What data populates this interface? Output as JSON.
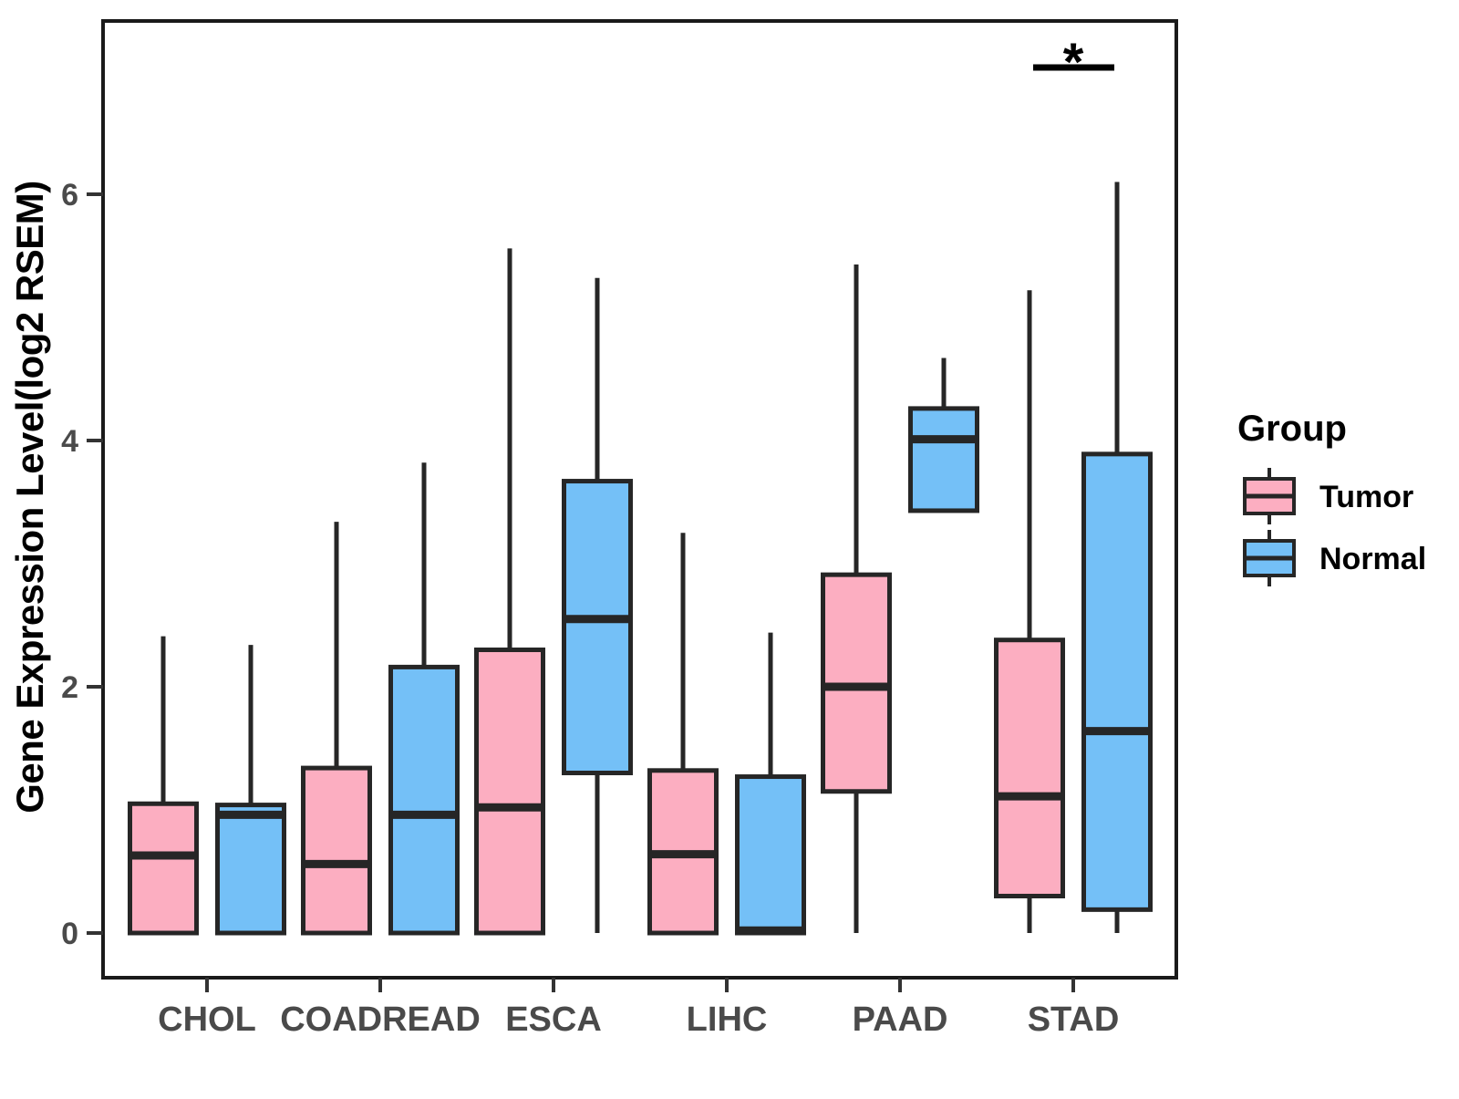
{
  "y_axis": {
    "title": "Gene Expression Level(log2 RSEM)",
    "tick_labels": [
      "0",
      "2",
      "4",
      "6"
    ]
  },
  "x_axis": {
    "categories": [
      "CHOL",
      "COADREAD",
      "ESCA",
      "LIHC",
      "PAAD",
      "STAD"
    ]
  },
  "legend": {
    "title": "Group",
    "items": [
      {
        "label": "Tumor",
        "color": "#FCAEC1"
      },
      {
        "label": "Normal",
        "color": "#74C0F7"
      }
    ]
  },
  "annotation": {
    "significance_label": "*",
    "category": "STAD"
  },
  "chart_data": {
    "type": "boxplot",
    "title": "",
    "xlabel": "",
    "ylabel": "Gene Expression Level(log2 RSEM)",
    "ylim": [
      -0.36,
      7.41
    ],
    "yticks": [
      0,
      2,
      4,
      6
    ],
    "grid": false,
    "legend_position": "right",
    "legend_title": "Group",
    "categories": [
      "CHOL",
      "COADREAD",
      "ESCA",
      "LIHC",
      "PAAD",
      "STAD"
    ],
    "series": [
      {
        "name": "Tumor",
        "color": "#FCAEC1",
        "boxes": [
          {
            "category": "CHOL",
            "lo": 0,
            "q1": 0,
            "med": 0.63,
            "q3": 1.05,
            "hi": 2.41
          },
          {
            "category": "COADREAD",
            "lo": 0,
            "q1": 0,
            "med": 0.56,
            "q3": 1.34,
            "hi": 3.34
          },
          {
            "category": "ESCA",
            "lo": 0,
            "q1": 0,
            "med": 1.02,
            "q3": 2.3,
            "hi": 5.56
          },
          {
            "category": "LIHC",
            "lo": 0,
            "q1": 0,
            "med": 0.64,
            "q3": 1.32,
            "hi": 3.25
          },
          {
            "category": "PAAD",
            "lo": 0,
            "q1": 1.15,
            "med": 2.0,
            "q3": 2.91,
            "hi": 5.43
          },
          {
            "category": "STAD",
            "lo": 0,
            "q1": 0.3,
            "med": 1.11,
            "q3": 2.38,
            "hi": 5.22
          }
        ]
      },
      {
        "name": "Normal",
        "color": "#74C0F7",
        "boxes": [
          {
            "category": "CHOL",
            "lo": 0,
            "q1": 0,
            "med": 0.96,
            "q3": 1.04,
            "hi": 2.34
          },
          {
            "category": "COADREAD",
            "lo": 0,
            "q1": 0,
            "med": 0.96,
            "q3": 2.16,
            "hi": 3.82
          },
          {
            "category": "ESCA",
            "lo": 0,
            "q1": 1.3,
            "med": 2.55,
            "q3": 3.67,
            "hi": 5.32
          },
          {
            "category": "LIHC",
            "lo": 0,
            "q1": 0,
            "med": 0.02,
            "q3": 1.27,
            "hi": 2.44
          },
          {
            "category": "PAAD",
            "lo": 3.43,
            "q1": 3.43,
            "med": 4.01,
            "q3": 4.26,
            "hi": 4.67
          },
          {
            "category": "STAD",
            "lo": 0,
            "q1": 0.19,
            "med": 1.64,
            "q3": 3.89,
            "hi": 6.1
          }
        ]
      }
    ],
    "significance": {
      "category": "STAD",
      "between": [
        "Tumor",
        "Normal"
      ],
      "label": "*"
    },
    "box_border_color": "#262626",
    "panel_border_color": "#1a1a1a"
  }
}
